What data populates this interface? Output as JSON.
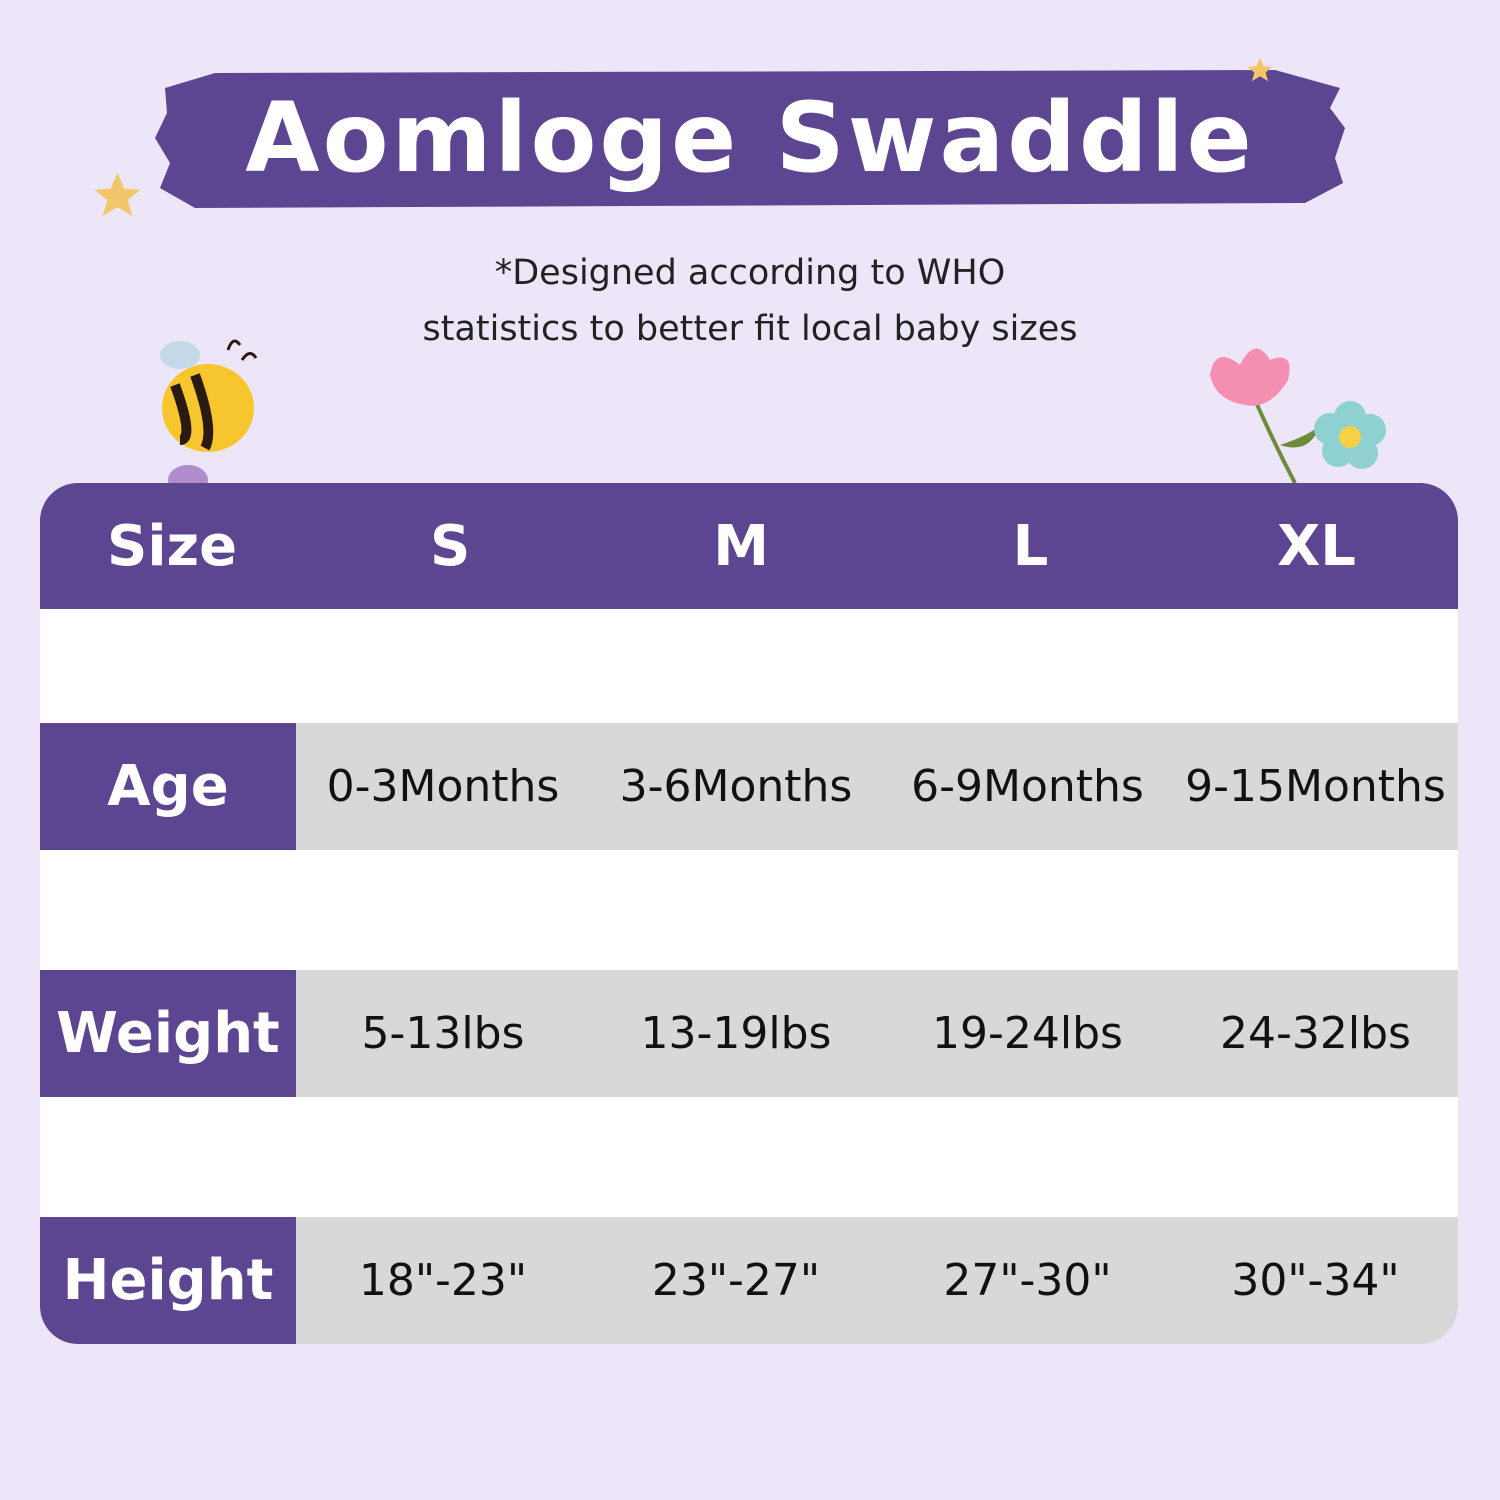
{
  "title": "Aomloge Swaddle",
  "subtitle_line1": "*Designed according to WHO",
  "subtitle_line2": "statistics to better fit local baby sizes",
  "colors": {
    "accent": "#5c4691",
    "background": "#ede6f8",
    "cell": "#d8d8d8"
  },
  "decorations": [
    "star-icon",
    "bee-icon",
    "flower-icon"
  ],
  "table": {
    "header": {
      "label": "Size",
      "sizes": [
        "S",
        "M",
        "L",
        "XL"
      ]
    },
    "rows": [
      {
        "label": "Age",
        "values": [
          "0-3Months",
          "3-6Months",
          "6-9Months",
          "9-15Months"
        ]
      },
      {
        "label": "Weight",
        "values": [
          "5-13lbs",
          "13-19lbs",
          "19-24lbs",
          "24-32lbs"
        ]
      },
      {
        "label": "Height",
        "values": [
          "18\"-23\"",
          "23\"-27\"",
          "27\"-30\"",
          "30\"-34\""
        ]
      }
    ]
  }
}
